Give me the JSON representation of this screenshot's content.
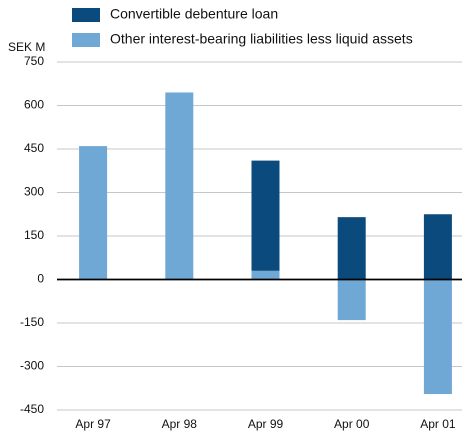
{
  "chart_data": {
    "type": "stacked_bar",
    "y_axis_label": "SEK M",
    "categories": [
      "Apr 97",
      "Apr 98",
      "Apr 99",
      "Apr 00",
      "Apr 01"
    ],
    "series": [
      {
        "name": "Other interest-bearing liabilities less liquid assets",
        "color": "#6fa8d5",
        "values": [
          460,
          645,
          30,
          -140,
          -395
        ]
      },
      {
        "name": "Convertible debenture loan",
        "color": "#0b4a7c",
        "values": [
          0,
          0,
          380,
          215,
          225
        ]
      }
    ],
    "legend_order": [
      1,
      0
    ],
    "legend": "top",
    "ylim": [
      -450,
      750
    ],
    "yticks": [
      -450,
      -300,
      -150,
      0,
      150,
      300,
      450,
      600,
      750
    ],
    "grid": true
  }
}
